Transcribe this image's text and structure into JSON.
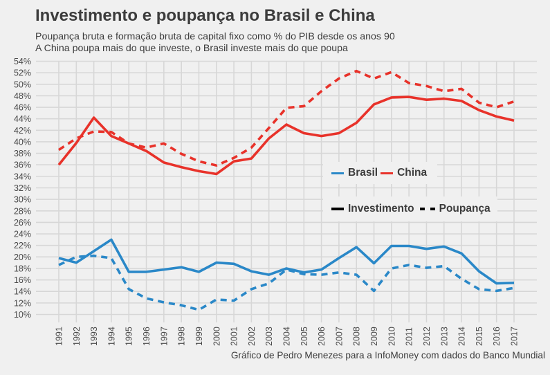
{
  "header": {
    "title": "Investimento e poupança no Brasil e China",
    "subtitle_line1": "Poupança bruta e formação bruta de capital fixo como % do PIB desde os anos 90",
    "subtitle_line2": "A China poupa mais do que investe, o Brasil investe mais do que poupa"
  },
  "caption": "Gráfico de Pedro Menezes para a InfoMoney com dados do Banco Mundial",
  "legend": {
    "countries": [
      {
        "label": "Brasil",
        "color": "#2a88c8"
      },
      {
        "label": "China",
        "color": "#e8322a"
      }
    ],
    "types": [
      {
        "label": "Investimento",
        "style": "solid"
      },
      {
        "label": "Poupança",
        "style": "dashed"
      }
    ]
  },
  "chart_data": {
    "type": "line",
    "title": "Investimento e poupança no Brasil e China",
    "xlabel": "",
    "ylabel": "",
    "x": [
      1991,
      1992,
      1993,
      1994,
      1995,
      1996,
      1997,
      1998,
      1999,
      2000,
      2001,
      2002,
      2003,
      2004,
      2005,
      2006,
      2007,
      2008,
      2009,
      2010,
      2011,
      2012,
      2013,
      2014,
      2015,
      2016,
      2017
    ],
    "x_tick_labels": [
      "1991",
      "1992",
      "1993",
      "1994",
      "1995",
      "1996",
      "1997",
      "1998",
      "1999",
      "2000",
      "2001",
      "2002",
      "2003",
      "2004",
      "2005",
      "2006",
      "2007",
      "2008",
      "2009",
      "2010",
      "2011",
      "2012",
      "2013",
      "2014",
      "2015",
      "2016",
      "2017"
    ],
    "ylim": [
      10,
      54
    ],
    "y_ticks": [
      10,
      12,
      14,
      16,
      18,
      20,
      22,
      24,
      26,
      28,
      30,
      32,
      34,
      36,
      38,
      40,
      42,
      44,
      46,
      48,
      50,
      52,
      54
    ],
    "y_tick_suffix": "%",
    "grid": true,
    "legend_position": "center-right",
    "series": [
      {
        "name": "China Investimento",
        "country": "China",
        "kind": "Investimento",
        "color": "#e8322a",
        "dashed": false,
        "values": [
          36.0,
          39.8,
          44.2,
          41.0,
          39.7,
          38.4,
          36.4,
          35.6,
          34.9,
          34.4,
          36.6,
          37.1,
          40.6,
          43.0,
          41.5,
          41.0,
          41.5,
          43.3,
          46.5,
          47.7,
          47.8,
          47.3,
          47.5,
          47.1,
          45.5,
          44.4,
          43.7
        ]
      },
      {
        "name": "China Poupança",
        "country": "China",
        "kind": "Poupança",
        "color": "#e8322a",
        "dashed": true,
        "values": [
          38.6,
          40.6,
          41.8,
          41.7,
          39.7,
          39.0,
          39.7,
          37.9,
          36.6,
          35.9,
          37.2,
          39.0,
          42.4,
          45.9,
          46.2,
          48.8,
          51.0,
          52.3,
          51.0,
          52.1,
          50.2,
          49.7,
          48.8,
          49.2,
          46.8,
          46.0,
          47.0
        ]
      },
      {
        "name": "Brasil Investimento",
        "country": "Brasil",
        "kind": "Investimento",
        "color": "#2a88c8",
        "dashed": false,
        "values": [
          19.8,
          19.0,
          21.0,
          23.0,
          17.4,
          17.4,
          17.8,
          18.2,
          17.4,
          19.0,
          18.8,
          17.5,
          16.9,
          18.0,
          17.3,
          17.8,
          19.8,
          21.7,
          18.9,
          21.9,
          21.9,
          21.4,
          21.8,
          20.6,
          17.5,
          15.4,
          15.5
        ]
      },
      {
        "name": "Brasil Poupança",
        "country": "Brasil",
        "kind": "Poupança",
        "color": "#2a88c8",
        "dashed": true,
        "values": [
          18.6,
          20.0,
          20.2,
          19.8,
          14.4,
          12.8,
          12.1,
          11.6,
          10.8,
          12.6,
          12.4,
          14.4,
          15.4,
          17.8,
          17.0,
          16.9,
          17.3,
          16.9,
          14.1,
          18.0,
          18.6,
          18.1,
          18.4,
          16.2,
          14.4,
          14.1,
          14.6
        ]
      }
    ]
  }
}
